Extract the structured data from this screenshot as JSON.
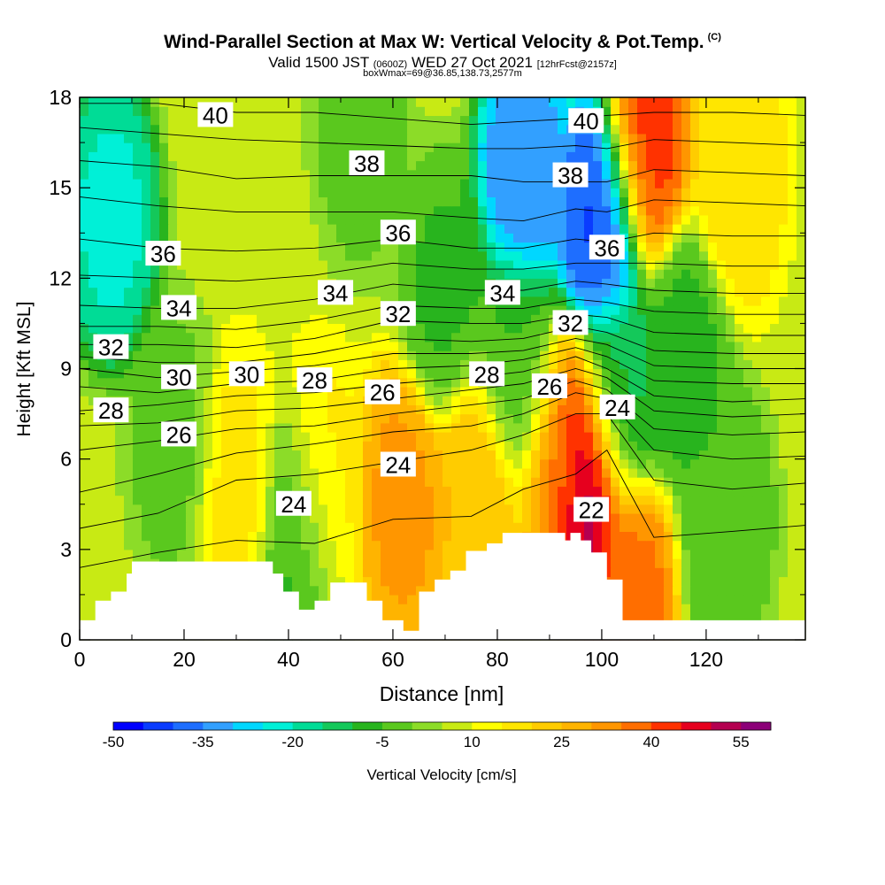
{
  "chart_data": {
    "type": "heatmap",
    "title": "Wind-Parallel Section at Max W: Vertical Velocity & Pot.Temp.",
    "title_mark": "(C)",
    "subtitle_parts": [
      "Valid 1500 JST",
      "(0600Z)",
      "WED 27 Oct 2021",
      "[12hrFcst@2157z]"
    ],
    "subtitle2": "boxWmax=69@36.85,138.73,2577m",
    "xlabel": "Distance [nm]",
    "ylabel": "Height [Kft MSL]",
    "xlim": [
      0,
      139
    ],
    "ylim": [
      0,
      18
    ],
    "x_ticks": [
      0,
      20,
      40,
      60,
      80,
      100,
      120
    ],
    "y_ticks": [
      0,
      3,
      6,
      9,
      12,
      15,
      18
    ],
    "grid": false,
    "colorbar": {
      "label": "Vertical Velocity [cm/s]",
      "tick_labels": [
        "-50",
        "-35",
        "-20",
        "-5",
        "10",
        "25",
        "40",
        "55"
      ],
      "tick_values": [
        -50,
        -35,
        -20,
        -5,
        10,
        25,
        40,
        55
      ],
      "min": -50,
      "max": 60,
      "step": 5,
      "colors": [
        "#0000ff",
        "#0a3cff",
        "#1e6eff",
        "#32a0ff",
        "#00d7ff",
        "#00f0d7",
        "#00dc96",
        "#14c85a",
        "#28b41e",
        "#5ac81e",
        "#8cdc28",
        "#c8ea14",
        "#ffff00",
        "#ffe600",
        "#ffcc00",
        "#ffb400",
        "#ff9600",
        "#ff6e00",
        "#ff3200",
        "#e6001e",
        "#b40050",
        "#8c0078"
      ]
    },
    "velocity_cores": [
      {
        "x": 6,
        "z": 14.0,
        "w": -22
      },
      {
        "x": 18,
        "z": 6.5,
        "w": -2
      },
      {
        "x": 30,
        "z": 5.0,
        "w": 17
      },
      {
        "x": 42,
        "z": 3.5,
        "w": -8
      },
      {
        "x": 46,
        "z": 5.0,
        "w": 17
      },
      {
        "x": 54,
        "z": 17.0,
        "w": -3
      },
      {
        "x": 62,
        "z": 4.5,
        "w": 32
      },
      {
        "x": 70,
        "z": 11.5,
        "w": -6
      },
      {
        "x": 76,
        "z": 5.0,
        "w": 25
      },
      {
        "x": 85,
        "z": 15.5,
        "w": -35
      },
      {
        "x": 84,
        "z": 9.0,
        "w": -5
      },
      {
        "x": 92,
        "z": 6.0,
        "w": 32
      },
      {
        "x": 97,
        "z": 5.5,
        "w": 60
      },
      {
        "x": 100,
        "z": 14.0,
        "w": -42
      },
      {
        "x": 103,
        "z": 8.0,
        "w": -12
      },
      {
        "x": 105,
        "z": 1.5,
        "w": 38
      },
      {
        "x": 108,
        "z": 16.5,
        "w": 43
      },
      {
        "x": 116,
        "z": 9.5,
        "w": -7
      },
      {
        "x": 124,
        "z": 4.0,
        "w": -5
      },
      {
        "x": 126,
        "z": 15.5,
        "w": 20
      }
    ],
    "terrain": {
      "x": [
        0,
        3,
        3,
        6,
        6,
        9,
        9,
        10,
        10,
        13,
        13,
        37,
        37,
        39,
        39,
        42,
        42,
        45,
        45,
        48,
        48,
        55,
        55,
        58,
        58,
        62,
        62,
        65,
        65,
        68,
        68,
        71,
        71,
        74,
        74,
        78,
        78,
        81,
        81,
        84,
        84,
        93,
        93,
        94,
        94,
        96,
        96,
        98,
        98,
        101,
        101,
        104,
        104,
        139
      ],
      "z": [
        0.65,
        0.65,
        1.3,
        1.3,
        1.6,
        1.6,
        2.2,
        2.2,
        2.6,
        2.6,
        2.6,
        2.6,
        2.2,
        2.2,
        1.6,
        1.6,
        1.0,
        1.0,
        1.3,
        1.3,
        1.9,
        1.9,
        1.3,
        1.3,
        0.65,
        0.65,
        0.3,
        0.3,
        1.6,
        1.6,
        2.0,
        2.0,
        2.3,
        2.3,
        2.95,
        2.95,
        3.2,
        3.2,
        3.55,
        3.55,
        3.55,
        3.55,
        3.3,
        3.3,
        3.55,
        3.55,
        3.3,
        3.3,
        2.9,
        2.9,
        2.0,
        2.0,
        0.65,
        0.65
      ]
    },
    "theta_contours": {
      "levels": [
        20,
        21,
        22,
        23,
        24,
        25,
        26,
        27,
        28,
        29,
        30,
        31,
        32,
        33,
        34,
        35,
        36,
        37,
        38,
        39,
        40
      ],
      "profiles": [
        {
          "x": 0,
          "z": [
            0.0,
            0.0,
            0.0,
            2.4,
            3.7,
            4.9,
            6.3,
            7.1,
            7.6,
            8.4,
            9.0,
            9.4,
            9.8,
            10.4,
            11.1,
            12.1,
            13.3,
            14.7,
            15.9,
            17.0,
            17.8
          ]
        },
        {
          "x": 15,
          "z": [
            0.0,
            0.0,
            0.0,
            2.9,
            4.2,
            5.5,
            6.6,
            7.2,
            7.8,
            8.2,
            8.7,
            9.2,
            9.8,
            10.4,
            11.0,
            12.0,
            13.0,
            14.4,
            15.7,
            16.8,
            17.8
          ]
        },
        {
          "x": 30,
          "z": [
            0.0,
            0.0,
            0.0,
            3.3,
            5.3,
            6.2,
            7.0,
            7.6,
            8.1,
            8.5,
            8.9,
            9.2,
            9.7,
            10.3,
            11.0,
            11.9,
            12.9,
            14.2,
            15.3,
            16.6,
            17.5
          ]
        },
        {
          "x": 45,
          "z": [
            0.0,
            0.0,
            0.0,
            3.2,
            5.5,
            6.5,
            7.1,
            7.7,
            8.2,
            8.6,
            9.1,
            9.5,
            10.0,
            10.6,
            11.3,
            12.1,
            13.0,
            14.2,
            15.4,
            16.5,
            17.5
          ]
        },
        {
          "x": 60,
          "z": [
            0.0,
            0.0,
            0.0,
            4.0,
            5.9,
            6.9,
            7.5,
            8.0,
            8.5,
            9.0,
            9.5,
            10.0,
            10.6,
            11.1,
            11.8,
            12.5,
            13.3,
            14.2,
            15.4,
            16.4,
            17.3
          ]
        },
        {
          "x": 75,
          "z": [
            0.0,
            0.0,
            0.0,
            4.1,
            6.3,
            7.1,
            7.8,
            8.3,
            8.7,
            9.1,
            9.5,
            9.9,
            10.5,
            11.0,
            11.6,
            12.3,
            13.0,
            14.0,
            15.4,
            16.3,
            17.1
          ]
        },
        {
          "x": 85,
          "z": [
            0.0,
            0.0,
            0.0,
            5.0,
            6.8,
            7.5,
            8.0,
            8.5,
            8.9,
            9.3,
            9.6,
            10.0,
            10.5,
            11.0,
            11.6,
            12.3,
            13.0,
            13.9,
            15.2,
            16.3,
            17.2
          ]
        },
        {
          "x": 95,
          "z": [
            0.0,
            0.0,
            2.8,
            5.5,
            7.5,
            8.2,
            8.6,
            9.0,
            9.4,
            9.7,
            10.0,
            10.4,
            10.8,
            11.3,
            11.9,
            12.5,
            13.3,
            14.3,
            15.2,
            16.4,
            17.3
          ]
        },
        {
          "x": 101,
          "z": [
            0.0,
            0.0,
            0.0,
            6.3,
            7.5,
            8.0,
            8.3,
            8.7,
            9.0,
            9.4,
            9.8,
            10.2,
            10.7,
            11.2,
            11.8,
            12.5,
            13.2,
            14.2,
            15.2,
            16.3,
            17.4
          ]
        },
        {
          "x": 110,
          "z": [
            0.0,
            0.0,
            0.0,
            3.4,
            5.3,
            6.3,
            7.0,
            7.6,
            8.1,
            8.6,
            9.1,
            9.6,
            10.2,
            10.9,
            11.6,
            12.5,
            13.5,
            14.6,
            15.6,
            16.6,
            17.5
          ]
        },
        {
          "x": 125,
          "z": [
            0.0,
            0.0,
            0.0,
            3.6,
            5.0,
            6.0,
            6.8,
            7.4,
            7.9,
            8.5,
            9.0,
            9.5,
            10.1,
            10.8,
            11.5,
            12.4,
            13.4,
            14.5,
            15.5,
            16.5,
            17.5
          ]
        },
        {
          "x": 139,
          "z": [
            0.0,
            0.0,
            0.0,
            3.8,
            5.2,
            6.1,
            6.9,
            7.5,
            8.0,
            8.5,
            9.0,
            9.5,
            10.1,
            10.8,
            11.5,
            12.4,
            13.4,
            14.4,
            15.4,
            16.4,
            17.4
          ]
        }
      ],
      "labels": [
        {
          "text": "40",
          "x": 26,
          "z": 17.4
        },
        {
          "text": "40",
          "x": 97,
          "z": 17.2
        },
        {
          "text": "38",
          "x": 55,
          "z": 15.8
        },
        {
          "text": "38",
          "x": 94,
          "z": 15.4
        },
        {
          "text": "36",
          "x": 16,
          "z": 12.8
        },
        {
          "text": "36",
          "x": 61,
          "z": 13.5
        },
        {
          "text": "36",
          "x": 101,
          "z": 13.0
        },
        {
          "text": "34",
          "x": 19,
          "z": 11.0
        },
        {
          "text": "34",
          "x": 49,
          "z": 11.5
        },
        {
          "text": "34",
          "x": 81,
          "z": 11.5
        },
        {
          "text": "32",
          "x": 6,
          "z": 9.7
        },
        {
          "text": "32",
          "x": 61,
          "z": 10.8
        },
        {
          "text": "32",
          "x": 94,
          "z": 10.5
        },
        {
          "text": "30",
          "x": 19,
          "z": 8.7
        },
        {
          "text": "30",
          "x": 32,
          "z": 8.8
        },
        {
          "text": "28",
          "x": 6,
          "z": 7.6
        },
        {
          "text": "28",
          "x": 45,
          "z": 8.6
        },
        {
          "text": "28",
          "x": 78,
          "z": 8.8
        },
        {
          "text": "26",
          "x": 19,
          "z": 6.8
        },
        {
          "text": "26",
          "x": 58,
          "z": 8.2
        },
        {
          "text": "26",
          "x": 90,
          "z": 8.4
        },
        {
          "text": "24",
          "x": 41,
          "z": 4.5
        },
        {
          "text": "24",
          "x": 61,
          "z": 5.8
        },
        {
          "text": "24",
          "x": 103,
          "z": 7.7
        },
        {
          "text": "22",
          "x": 98,
          "z": 4.3
        }
      ]
    }
  }
}
